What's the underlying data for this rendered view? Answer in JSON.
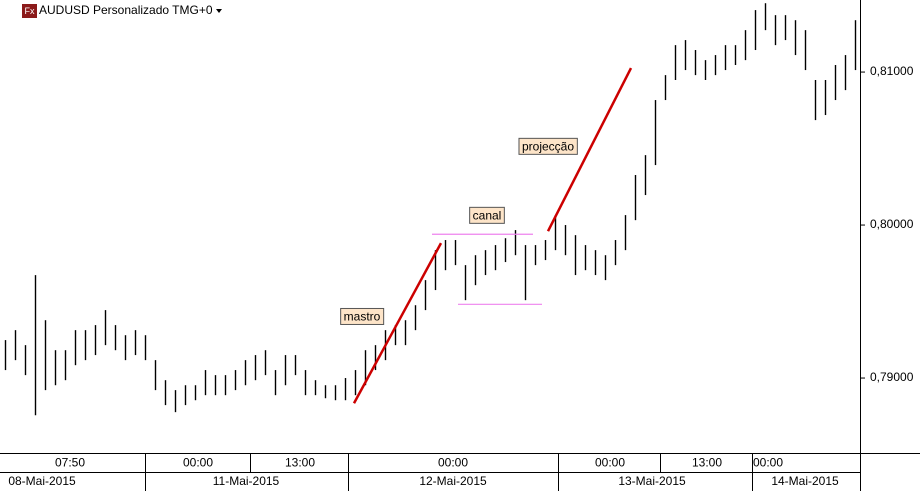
{
  "chart_data": {
    "type": "ohlc-range",
    "title": "AUDUSD Personalizado TMG+0",
    "symbol_icon": "Fx",
    "color": "#000000",
    "high": [
      0.79248,
      0.79313,
      0.79215,
      0.79673,
      0.79378,
      0.79182,
      0.79182,
      0.79313,
      0.79313,
      0.79346,
      0.79444,
      0.79346,
      0.7928,
      0.79313,
      0.7928,
      0.79117,
      0.78986,
      0.78921,
      0.78953,
      0.78953,
      0.79052,
      0.79019,
      0.79019,
      0.79052,
      0.79117,
      0.7915,
      0.79182,
      0.79052,
      0.7915,
      0.7915,
      0.79052,
      0.78986,
      0.78953,
      0.78953,
      0.79,
      0.79052,
      0.79182,
      0.79215,
      0.79313,
      0.79346,
      0.79378,
      0.79476,
      0.7964,
      0.79836,
      0.79902,
      0.79902,
      0.79738,
      0.79803,
      0.79836,
      0.79869,
      0.79914,
      0.79967,
      0.79869,
      0.79869,
      0.79902,
      0.80065,
      0.8,
      0.79934,
      0.79869,
      0.79836,
      0.79803,
      0.79902,
      0.80065,
      0.80327,
      0.80457,
      0.80817,
      0.8098,
      0.81176,
      0.81209,
      0.81144,
      0.81078,
      0.81111,
      0.81176,
      0.81176,
      0.81274,
      0.81405,
      0.8145,
      0.81372,
      0.81372,
      0.81339,
      0.81274,
      0.80948,
      0.80948,
      0.81046,
      0.81111,
      0.81339
    ],
    "low": [
      0.79052,
      0.79117,
      0.79019,
      0.78757,
      0.78921,
      0.78953,
      0.78986,
      0.79084,
      0.79117,
      0.7915,
      0.79215,
      0.79182,
      0.79117,
      0.7915,
      0.79117,
      0.78921,
      0.78823,
      0.78777,
      0.78823,
      0.78855,
      0.78888,
      0.78888,
      0.78888,
      0.78921,
      0.78953,
      0.78986,
      0.79019,
      0.78888,
      0.78953,
      0.79019,
      0.78888,
      0.78888,
      0.78868,
      0.78855,
      0.78855,
      0.78888,
      0.78953,
      0.79052,
      0.79117,
      0.79215,
      0.79215,
      0.79313,
      0.79444,
      0.79575,
      0.79705,
      0.79738,
      0.79509,
      0.79607,
      0.79673,
      0.79705,
      0.79758,
      0.79803,
      0.79509,
      0.79738,
      0.79771,
      0.79836,
      0.79803,
      0.79673,
      0.79705,
      0.79673,
      0.7964,
      0.79738,
      0.79836,
      0.80032,
      0.80196,
      0.80392,
      0.80817,
      0.80948,
      0.81013,
      0.8098,
      0.80948,
      0.8098,
      0.81013,
      0.81046,
      0.81078,
      0.81144,
      0.81274,
      0.81176,
      0.81209,
      0.81111,
      0.81013,
      0.80686,
      0.80719,
      0.80817,
      0.80882,
      0.81013
    ],
    "xlim": [
      0,
      86
    ],
    "ylim": [
      0.7851,
      0.81471
    ],
    "yticks": [
      {
        "value": 0.81,
        "label": "0,81000"
      },
      {
        "value": 0.8,
        "label": "0,80000"
      },
      {
        "value": 0.79,
        "label": "0,79000"
      }
    ],
    "xticks": [
      {
        "value": 7.0,
        "label": "07:50"
      },
      {
        "value": 19.8,
        "label": "00:00"
      },
      {
        "value": 30.0,
        "label": "13:00"
      },
      {
        "value": 45.3,
        "label": "00:00"
      },
      {
        "value": 61.0,
        "label": "00:00"
      },
      {
        "value": 70.7,
        "label": "13:00"
      },
      {
        "value": 76.8,
        "label": "00:00"
      }
    ],
    "date_ticks": [
      {
        "value": 4.2,
        "label": "08-Mai-2015"
      },
      {
        "value": 24.6,
        "label": "11-Mai-2015"
      },
      {
        "value": 45.3,
        "label": "12-Mai-2015"
      },
      {
        "value": 65.2,
        "label": "13-Mai-2015"
      },
      {
        "value": 80.5,
        "label": "14-Mai-2015"
      }
    ],
    "drawings": [
      {
        "color": "#cc0000",
        "x": [
          35.4,
          44.1
        ],
        "y": [
          0.78835,
          0.79882
        ]
      },
      {
        "color": "#ee82ee",
        "x": [
          43.2,
          53.3
        ],
        "y": [
          0.7994,
          0.7994
        ]
      },
      {
        "color": "#ee82ee",
        "x": [
          45.8,
          54.2
        ],
        "y": [
          0.79482,
          0.79482
        ]
      },
      {
        "color": "#cc0000",
        "x": [
          54.8,
          63.1
        ],
        "y": [
          0.7996,
          0.81026
        ]
      }
    ],
    "annotations": [
      {
        "text": "mastro",
        "x": 36.2,
        "y": 0.79397
      },
      {
        "text": "canal",
        "x": 48.7,
        "y": 0.80058
      },
      {
        "text": "projecção",
        "x": 54.8,
        "y": 0.80509
      }
    ]
  }
}
